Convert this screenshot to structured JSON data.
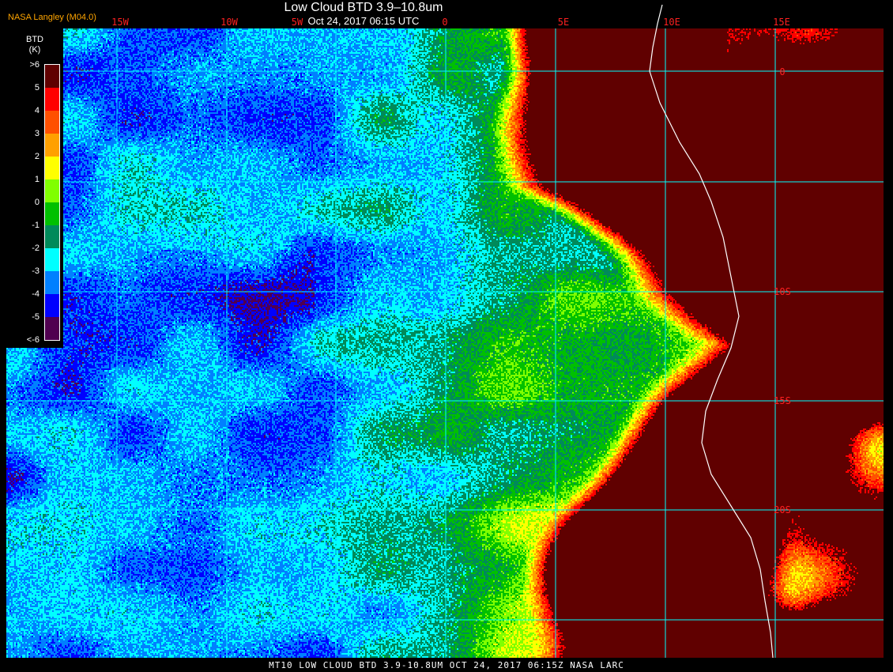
{
  "header": {
    "title": "Low Cloud BTD 3.9–10.8um",
    "datetime": "Oct 24, 2017 06:15 UTC",
    "organization": "NASA Langley (M04.0)"
  },
  "grid": {
    "longitude_labels": [
      "15W",
      "10W",
      "5W",
      "0",
      "5E",
      "10E",
      "15E"
    ],
    "latitude_labels": [
      "0",
      "10S",
      "15S",
      "20S"
    ],
    "grid_color": "#00ffff",
    "label_color": "#ff2020",
    "coastline_color": "#ffffff"
  },
  "legend": {
    "title": "BTD",
    "units": "(K)",
    "tick_labels": [
      ">6",
      "5",
      "4",
      "3",
      "2",
      "1",
      "0",
      "-1",
      "-2",
      "-3",
      "-4",
      "-5",
      "<-6"
    ],
    "colors": [
      "#600000",
      "#ff0000",
      "#ff5000",
      "#ffa000",
      "#ffff00",
      "#80ff00",
      "#00c000",
      "#008a5a",
      "#00ffff",
      "#0080ff",
      "#0000ff",
      "#500050"
    ]
  },
  "footer": {
    "caption": "MT10  LOW CLOUD BTD 3.9-10.8UM   OCT 24, 2017 06:15Z   NASA LARC"
  }
}
